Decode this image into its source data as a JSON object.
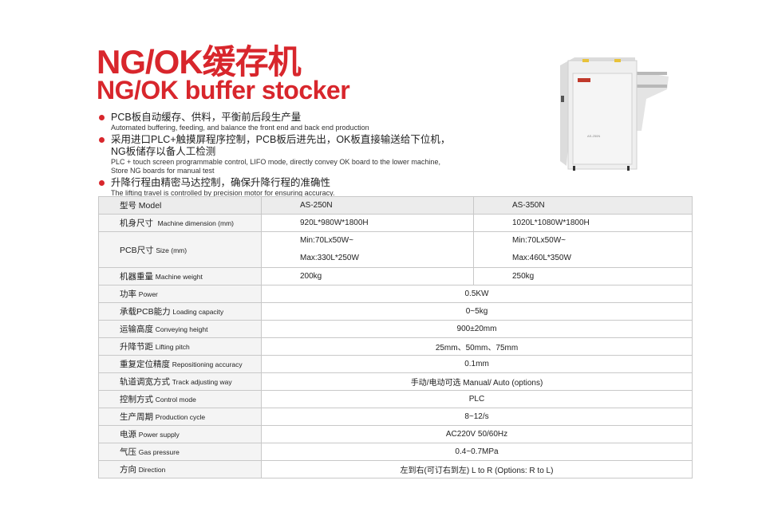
{
  "title_cn": "NG/OK缓存机",
  "title_en": "NG/OK buffer stocker",
  "accent_color": "#d8262c",
  "features": [
    {
      "cn": "PCB板自动缓存、供料，平衡前后段生产量",
      "en": "Automated buffering, feeding, and balance the front end and back end production"
    },
    {
      "cn": "采用进口PLC+触摸屏程序控制，PCB板后进先出，OK板直接输送给下位机，",
      "cn2": "NG板储存以备人工检测",
      "en": "PLC + touch screen programmable control, LIFO mode, directly convey OK board to the lower machine,",
      "en2": "Store NG boards for manual test"
    },
    {
      "cn": "升降行程由精密马达控制，确保升降行程的准确性",
      "en": "The lifting travel is controlled by precision motor for ensuring accuracy."
    }
  ],
  "image": {
    "label": "machine-photo",
    "badge": "AS-250N"
  },
  "specs": {
    "header": {
      "cn": "型号",
      "en": "Model",
      "a": "AS-250N",
      "b": "AS-350N"
    },
    "dual_rows": [
      {
        "cn": "机身尺寸",
        "en": "Machine dimension (mm)",
        "a": "920L*980W*1800H",
        "b": "1020L*1080W*1800H"
      },
      {
        "cn": "PCB尺寸",
        "en": "Size  (mm)",
        "a": "Min:70Lx50W~",
        "a2": "Max:330L*250W",
        "b": "Min:70Lx50W~",
        "b2": "Max:460L*350W"
      },
      {
        "cn": "机器重量",
        "en": "Machine weight",
        "a": "200kg",
        "b": "250kg"
      }
    ],
    "shared_rows": [
      {
        "cn": "功率",
        "en": "Power",
        "v": "0.5KW"
      },
      {
        "cn": "承载PCB能力",
        "en": "Loading capacity",
        "v": "0~5kg"
      },
      {
        "cn": "运输高度",
        "en": "Conveying height",
        "v": "900±20mm"
      },
      {
        "cn": "升降节距",
        "en": "Lifting pitch",
        "v": "25mm、50mm、75mm"
      },
      {
        "cn": "重复定位精度",
        "en": "Repositioning accuracy",
        "v": "0.1mm"
      },
      {
        "cn": "轨道调宽方式",
        "en": "Track adjusting way",
        "v": "手动/电动可选",
        "v_en": "Manual/ Auto (options)"
      },
      {
        "cn": "控制方式",
        "en": "Control mode",
        "v": "PLC"
      },
      {
        "cn": "生产周期",
        "en": "Production cycle",
        "v": "8~12/s"
      },
      {
        "cn": "电源",
        "en": "Power supply",
        "v": "AC220V 50/60Hz"
      },
      {
        "cn": "气压",
        "en": "Gas pressure",
        "v": "0.4~0.7MPa"
      },
      {
        "cn": "方向",
        "en": "Direction",
        "v": "左到右(可订右到左)",
        "v_en": "L to R (Options: R to L)"
      }
    ]
  }
}
